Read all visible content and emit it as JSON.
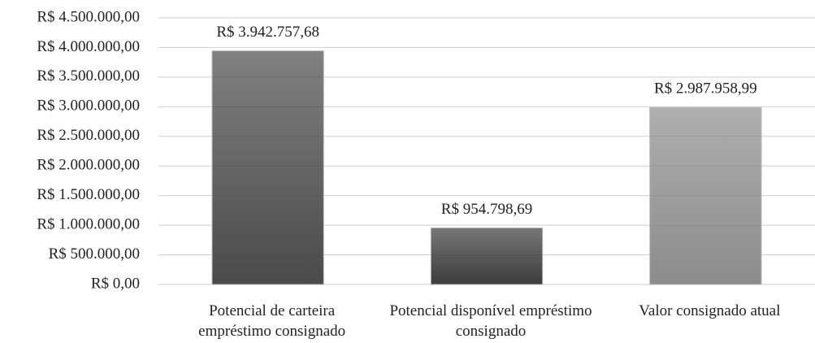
{
  "chart_data": {
    "type": "bar",
    "categories": [
      "Potencial de carteira empréstimo consignado",
      "Potencial disponível empréstimo consignado",
      "Valor consignado atual"
    ],
    "values": [
      3942757.68,
      954798.69,
      2987958.99
    ],
    "value_labels": [
      "R$ 3.942.757,68",
      "R$ 954.798,69",
      "R$ 2.987.958,99"
    ],
    "colors": [
      "#4a4a4a",
      "#3c3c3c",
      "#8c8c8c"
    ],
    "ylim": [
      0,
      4500000
    ],
    "yticks": [
      {
        "value": 0,
        "label": "R$ 0,00"
      },
      {
        "value": 500000,
        "label": "R$ 500.000,00"
      },
      {
        "value": 1000000,
        "label": "R$ 1.000.000,00"
      },
      {
        "value": 1500000,
        "label": "R$ 1.500.000,00"
      },
      {
        "value": 2000000,
        "label": "R$ 2.000.000,00"
      },
      {
        "value": 2500000,
        "label": "R$ 2.500.000,00"
      },
      {
        "value": 3000000,
        "label": "R$ 3.000.000,00"
      },
      {
        "value": 3500000,
        "label": "R$ 3.500.000,00"
      },
      {
        "value": 4000000,
        "label": "R$ 4.000.000,00"
      },
      {
        "value": 4500000,
        "label": "R$ 4.500.000,00"
      }
    ],
    "grid": true
  }
}
